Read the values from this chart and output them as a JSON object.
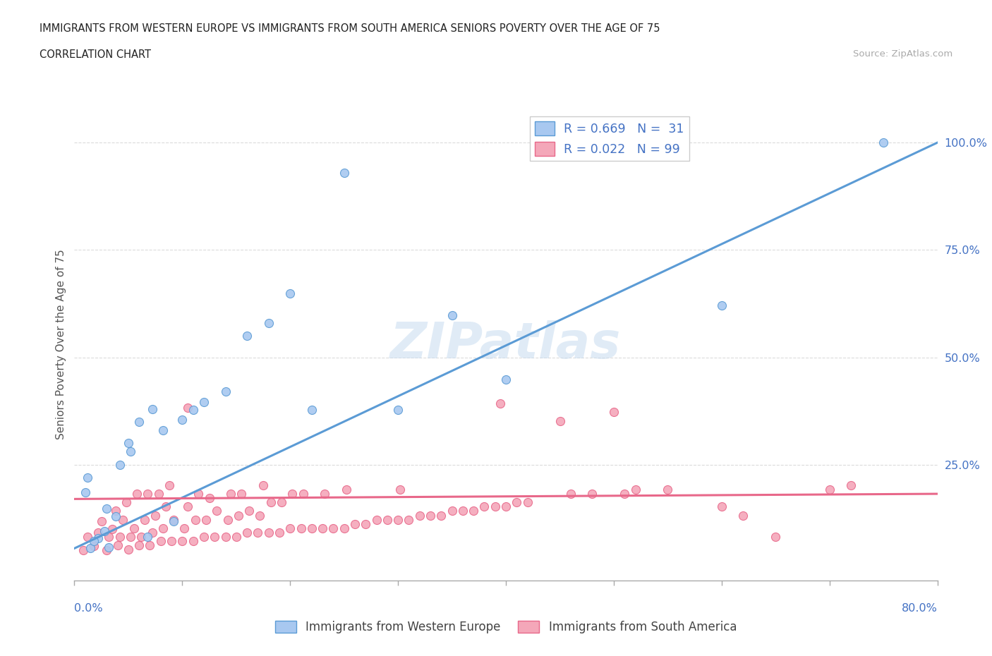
{
  "title_line1": "IMMIGRANTS FROM WESTERN EUROPE VS IMMIGRANTS FROM SOUTH AMERICA SENIORS POVERTY OVER THE AGE OF 75",
  "title_line2": "CORRELATION CHART",
  "source_text": "Source: ZipAtlas.com",
  "ylabel": "Seniors Poverty Over the Age of 75",
  "ytick_values": [
    0.0,
    0.25,
    0.5,
    0.75,
    1.0
  ],
  "ytick_labels": [
    "",
    "25.0%",
    "50.0%",
    "75.0%",
    "100.0%"
  ],
  "xlim": [
    0.0,
    0.8
  ],
  "ylim": [
    -0.02,
    1.08
  ],
  "watermark": "ZIPatlas",
  "color_blue": "#A8C8F0",
  "color_pink": "#F4A7B9",
  "color_blue_dark": "#5B9BD5",
  "color_pink_dark": "#E8688A",
  "color_text_blue": "#4472C4",
  "color_grid": "#CCCCCC",
  "blue_scatter_x": [
    0.015,
    0.012,
    0.01,
    0.022,
    0.028,
    0.018,
    0.032,
    0.038,
    0.042,
    0.03,
    0.05,
    0.052,
    0.06,
    0.072,
    0.082,
    0.1,
    0.12,
    0.14,
    0.16,
    0.18,
    0.068,
    0.092,
    0.11,
    0.2,
    0.22,
    0.3,
    0.35,
    0.4,
    0.6,
    0.75,
    0.25
  ],
  "blue_scatter_y": [
    0.055,
    0.22,
    0.185,
    0.078,
    0.095,
    0.072,
    0.058,
    0.13,
    0.25,
    0.148,
    0.3,
    0.28,
    0.35,
    0.38,
    0.33,
    0.355,
    0.395,
    0.42,
    0.55,
    0.58,
    0.082,
    0.118,
    0.378,
    0.648,
    0.378,
    0.378,
    0.598,
    0.448,
    0.62,
    1.0,
    0.93
  ],
  "pink_scatter_x": [
    0.008,
    0.012,
    0.018,
    0.022,
    0.025,
    0.03,
    0.032,
    0.035,
    0.038,
    0.04,
    0.042,
    0.045,
    0.048,
    0.05,
    0.052,
    0.055,
    0.058,
    0.06,
    0.062,
    0.065,
    0.068,
    0.07,
    0.072,
    0.075,
    0.078,
    0.08,
    0.082,
    0.085,
    0.088,
    0.09,
    0.092,
    0.1,
    0.102,
    0.105,
    0.11,
    0.112,
    0.115,
    0.12,
    0.122,
    0.125,
    0.13,
    0.132,
    0.14,
    0.142,
    0.145,
    0.15,
    0.152,
    0.155,
    0.16,
    0.162,
    0.17,
    0.172,
    0.175,
    0.18,
    0.182,
    0.19,
    0.192,
    0.2,
    0.202,
    0.21,
    0.212,
    0.22,
    0.23,
    0.232,
    0.24,
    0.25,
    0.252,
    0.26,
    0.27,
    0.28,
    0.29,
    0.3,
    0.302,
    0.31,
    0.32,
    0.33,
    0.34,
    0.35,
    0.36,
    0.37,
    0.38,
    0.39,
    0.4,
    0.41,
    0.42,
    0.45,
    0.46,
    0.48,
    0.5,
    0.51,
    0.52,
    0.55,
    0.6,
    0.62,
    0.65,
    0.7,
    0.72,
    0.105,
    0.395
  ],
  "pink_scatter_y": [
    0.05,
    0.082,
    0.06,
    0.092,
    0.118,
    0.05,
    0.082,
    0.1,
    0.142,
    0.062,
    0.082,
    0.122,
    0.162,
    0.052,
    0.082,
    0.102,
    0.182,
    0.062,
    0.082,
    0.122,
    0.182,
    0.062,
    0.092,
    0.132,
    0.182,
    0.072,
    0.102,
    0.152,
    0.202,
    0.072,
    0.122,
    0.072,
    0.102,
    0.152,
    0.072,
    0.122,
    0.182,
    0.082,
    0.122,
    0.172,
    0.082,
    0.142,
    0.082,
    0.122,
    0.182,
    0.082,
    0.132,
    0.182,
    0.092,
    0.142,
    0.092,
    0.132,
    0.202,
    0.092,
    0.162,
    0.092,
    0.162,
    0.102,
    0.182,
    0.102,
    0.182,
    0.102,
    0.102,
    0.182,
    0.102,
    0.102,
    0.192,
    0.112,
    0.112,
    0.122,
    0.122,
    0.122,
    0.192,
    0.122,
    0.132,
    0.132,
    0.132,
    0.142,
    0.142,
    0.142,
    0.152,
    0.152,
    0.152,
    0.162,
    0.162,
    0.352,
    0.182,
    0.182,
    0.372,
    0.182,
    0.192,
    0.192,
    0.152,
    0.132,
    0.082,
    0.192,
    0.202,
    0.382,
    0.392
  ],
  "blue_trendline_x": [
    0.0,
    0.8
  ],
  "blue_trendline_y": [
    0.055,
    1.0
  ],
  "pink_trendline_x": [
    0.0,
    0.8
  ],
  "pink_trendline_y": [
    0.17,
    0.182
  ],
  "background_color": "#FFFFFF"
}
